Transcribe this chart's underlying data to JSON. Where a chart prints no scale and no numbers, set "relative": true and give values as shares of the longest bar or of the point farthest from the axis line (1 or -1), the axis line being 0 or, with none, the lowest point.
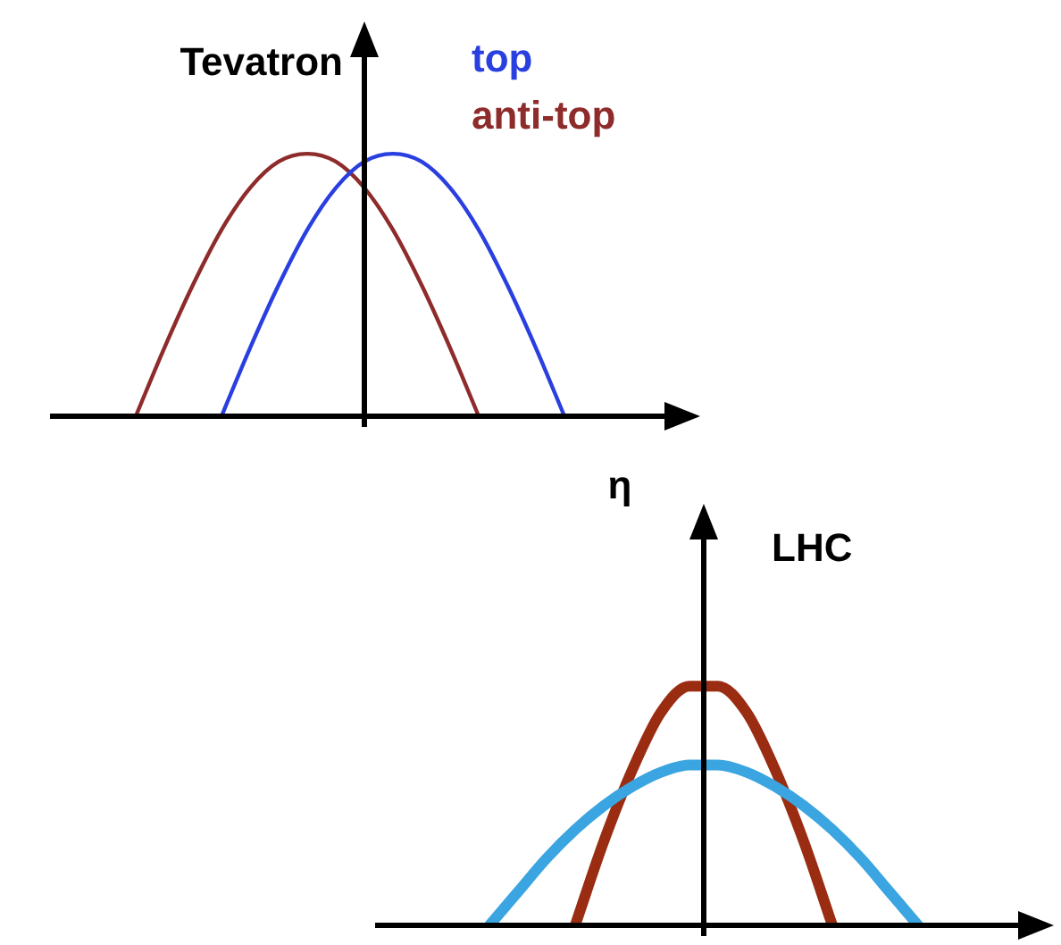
{
  "chart_data": [
    {
      "type": "line",
      "title": "Tevatron",
      "xlabel": "η",
      "relative": true,
      "legend": "top right",
      "marker": "none",
      "categories": [
        null,
        null,
        null,
        null,
        null,
        null,
        null,
        null,
        null,
        null,
        null,
        null,
        null,
        null,
        null,
        null,
        null,
        null,
        null,
        null,
        null,
        null,
        null
      ],
      "series": [
        {
          "name": "top",
          "color": "#2a3fe0",
          "values": [
            null,
            null,
            null,
            null,
            null,
            null,
            0,
            0.26,
            0.5,
            0.71,
            0.87,
            0.97,
            1,
            0.97,
            0.87,
            0.71,
            0.5,
            0.26,
            0,
            null,
            null,
            null,
            null
          ]
        },
        {
          "name": "anti-top",
          "color": "#8e2b2b",
          "values": [
            null,
            null,
            null,
            0,
            0.26,
            0.5,
            0.71,
            0.87,
            0.97,
            1,
            0.97,
            0.87,
            0.71,
            0.5,
            0.26,
            0,
            null,
            null,
            null,
            null,
            null,
            null,
            null
          ]
        }
      ]
    },
    {
      "type": "line",
      "title": "LHC",
      "relative": true,
      "marker": "none",
      "categories": [
        null,
        null,
        null,
        null,
        null,
        null,
        null,
        null,
        null,
        null,
        null,
        null,
        null,
        null,
        null,
        null,
        null,
        null,
        null,
        null,
        null,
        null,
        null,
        null
      ],
      "series": [
        {
          "color": "#3aa5e0",
          "values": [
            null,
            null,
            null,
            null,
            0,
            0.14,
            0.28,
            0.4,
            0.5,
            0.58,
            0.64,
            0.67,
            0.67,
            0.64,
            0.58,
            0.5,
            0.4,
            0.28,
            0.14,
            0,
            null,
            null,
            null,
            null
          ]
        },
        {
          "color": "#9a2c12",
          "values": [
            null,
            null,
            null,
            null,
            null,
            null,
            null,
            0,
            0.35,
            0.65,
            0.89,
            1,
            1,
            0.89,
            0.65,
            0.35,
            0,
            null,
            null,
            null,
            null,
            null,
            null,
            null
          ]
        }
      ]
    }
  ]
}
